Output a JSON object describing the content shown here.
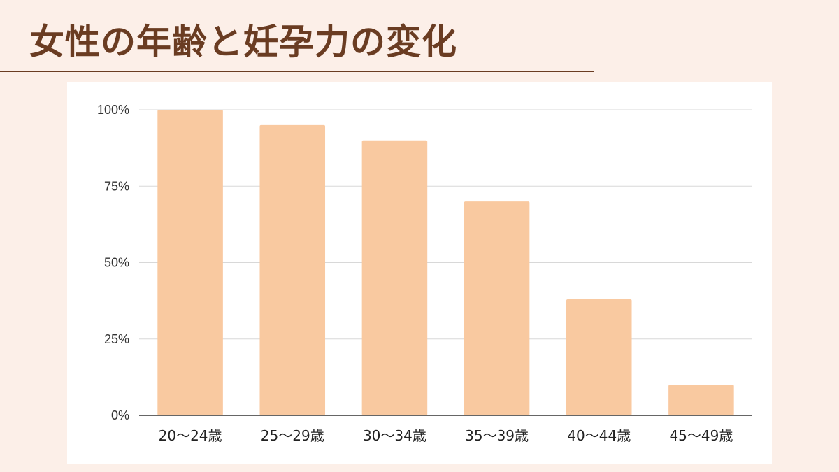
{
  "title": "女性の年齢と妊孕力の変化",
  "colors": {
    "background": "#fcefe8",
    "title": "#6a3c22",
    "bar": "#f9c9a0",
    "grid": "#d8d8d8",
    "axis": "#333333"
  },
  "chart_data": {
    "type": "bar",
    "title": "",
    "xlabel": "",
    "ylabel": "",
    "categories": [
      "20～24歳",
      "25～29歳",
      "30～34歳",
      "35～39歳",
      "40～44歳",
      "45～49歳"
    ],
    "values": [
      100,
      95,
      90,
      70,
      38,
      10
    ],
    "ylim": [
      0,
      100
    ],
    "yticks": [
      "0%",
      "25%",
      "50%",
      "75%",
      "100%"
    ],
    "ytick_values": [
      0,
      25,
      50,
      75,
      100
    ],
    "grid": true,
    "legend": "none"
  }
}
